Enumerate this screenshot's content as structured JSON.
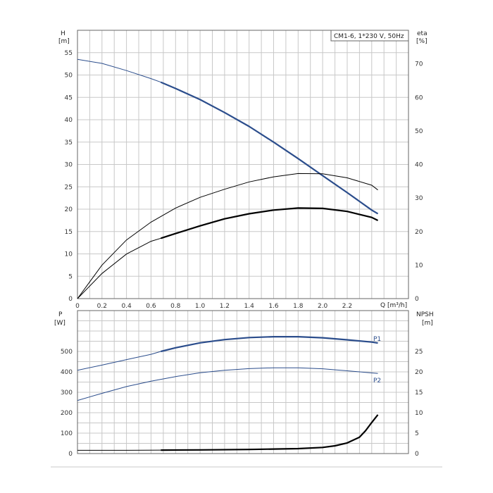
{
  "chart_data": [
    {
      "type": "line",
      "legend_box": "CM1-6, 1*230 V, 50Hz",
      "xlabel": "Q [m³/h]",
      "ylabel_left": [
        "H",
        "[m]"
      ],
      "ylabel_right": [
        "eta",
        "[%]"
      ],
      "xlim": [
        0,
        2.7
      ],
      "ylim_left": [
        0,
        60
      ],
      "ylim_right": [
        0,
        80
      ],
      "x_ticks": [
        "0",
        "0.2",
        "0.4",
        "0.6",
        "0.8",
        "1.0",
        "1.2",
        "1.4",
        "1.6",
        "1.8",
        "2.0",
        "2.2"
      ],
      "y_left_ticks": [
        "0",
        "5",
        "10",
        "15",
        "20",
        "25",
        "30",
        "35",
        "40",
        "45",
        "50",
        "55"
      ],
      "y_right_ticks": [
        "0",
        "10",
        "20",
        "30",
        "40",
        "50",
        "60",
        "70"
      ],
      "grid": true,
      "series": [
        {
          "axis": "left",
          "color": "#2b4d8c",
          "x": [
            0,
            0.2,
            0.4,
            0.6,
            0.68,
            0.8,
            1.0,
            1.2,
            1.4,
            1.6,
            1.8,
            2.0,
            2.2,
            2.4,
            2.45
          ],
          "y": [
            53.5,
            52.6,
            51.0,
            49.2,
            48.4,
            47.0,
            44.5,
            41.6,
            38.5,
            35.0,
            31.3,
            27.5,
            23.7,
            19.8,
            19.0
          ],
          "bold_from": 0.68
        },
        {
          "axis": "right",
          "color": "#000000",
          "x": [
            0,
            0.2,
            0.4,
            0.6,
            0.8,
            1.0,
            1.2,
            1.4,
            1.6,
            1.8,
            2.0,
            2.2,
            2.4,
            2.45
          ],
          "y": [
            0,
            10.0,
            17.5,
            22.8,
            27.0,
            30.2,
            32.6,
            34.8,
            36.3,
            37.3,
            37.2,
            36.0,
            33.8,
            32.4
          ]
        },
        {
          "axis": "right",
          "color": "#000000",
          "x": [
            0,
            0.2,
            0.4,
            0.6,
            0.68,
            0.8,
            1.0,
            1.2,
            1.4,
            1.6,
            1.8,
            2.0,
            2.2,
            2.4,
            2.45
          ],
          "y": [
            0,
            7.5,
            13.3,
            17.1,
            18.0,
            19.4,
            21.7,
            23.8,
            25.3,
            26.4,
            27.0,
            26.9,
            26.0,
            24.2,
            23.3
          ],
          "bold_from": 0.68
        }
      ]
    },
    {
      "type": "line",
      "xlim": [
        0,
        2.7
      ],
      "ylabel_left": [
        "P",
        "[W]"
      ],
      "ylabel_right": [
        "NPSH",
        "[m]"
      ],
      "ylim_left": [
        0,
        700
      ],
      "ylim_right": [
        0,
        35
      ],
      "y_left_ticks": [
        "0",
        "100",
        "200",
        "300",
        "400",
        "500"
      ],
      "y_right_ticks": [
        "0",
        "5",
        "10",
        "15",
        "20",
        "25"
      ],
      "grid": true,
      "series": [
        {
          "name": "P1",
          "axis": "left",
          "color": "#2b4d8c",
          "x": [
            0,
            0.2,
            0.4,
            0.6,
            0.68,
            0.8,
            1.0,
            1.2,
            1.4,
            1.6,
            1.8,
            2.0,
            2.2,
            2.4,
            2.45
          ],
          "y": [
            408,
            433,
            460,
            486,
            500,
            518,
            542,
            558,
            568,
            572,
            572,
            567,
            557,
            546,
            541
          ],
          "bold_from": 0.68
        },
        {
          "name": "P2",
          "axis": "left",
          "color": "#2b4d8c",
          "x": [
            0,
            0.2,
            0.4,
            0.6,
            0.8,
            1.0,
            1.2,
            1.4,
            1.6,
            1.8,
            2.0,
            2.2,
            2.4,
            2.45
          ],
          "y": [
            260,
            295,
            328,
            354,
            377,
            396,
            408,
            416,
            420,
            420,
            415,
            405,
            395,
            392
          ]
        },
        {
          "axis": "right",
          "color": "#000000",
          "x": [
            0,
            0.4,
            0.68,
            1.0,
            1.4,
            1.8,
            2.0,
            2.1,
            2.2,
            2.3,
            2.35,
            2.4,
            2.45
          ],
          "y": [
            0.8,
            0.8,
            0.85,
            0.9,
            1.0,
            1.2,
            1.5,
            1.9,
            2.6,
            4.0,
            5.6,
            7.6,
            9.5
          ],
          "bold_from": 0.68
        }
      ]
    }
  ]
}
